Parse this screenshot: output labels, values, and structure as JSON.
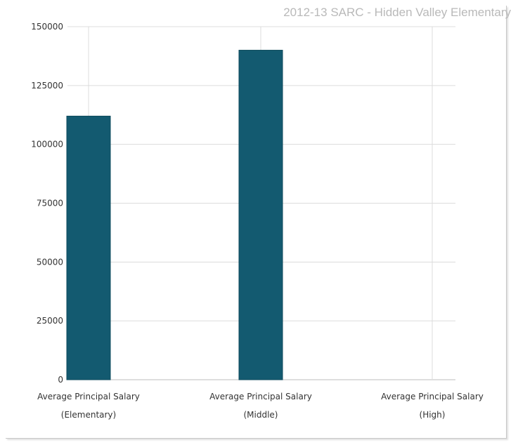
{
  "chart_data": {
    "type": "bar",
    "title": "2012-13 SARC - Hidden Valley Elementary",
    "categories": [
      [
        "Average Principal Salary",
        "(Elementary)"
      ],
      [
        "Average Principal Salary",
        "(Middle)"
      ],
      [
        "Average Principal Salary",
        "(High)"
      ]
    ],
    "values": [
      112000,
      140000,
      null
    ],
    "ylim": [
      0,
      150000
    ],
    "yticks": [
      0,
      25000,
      50000,
      75000,
      100000,
      125000,
      150000
    ],
    "bar_color": "#135a70",
    "grid": true,
    "legend": "none"
  }
}
